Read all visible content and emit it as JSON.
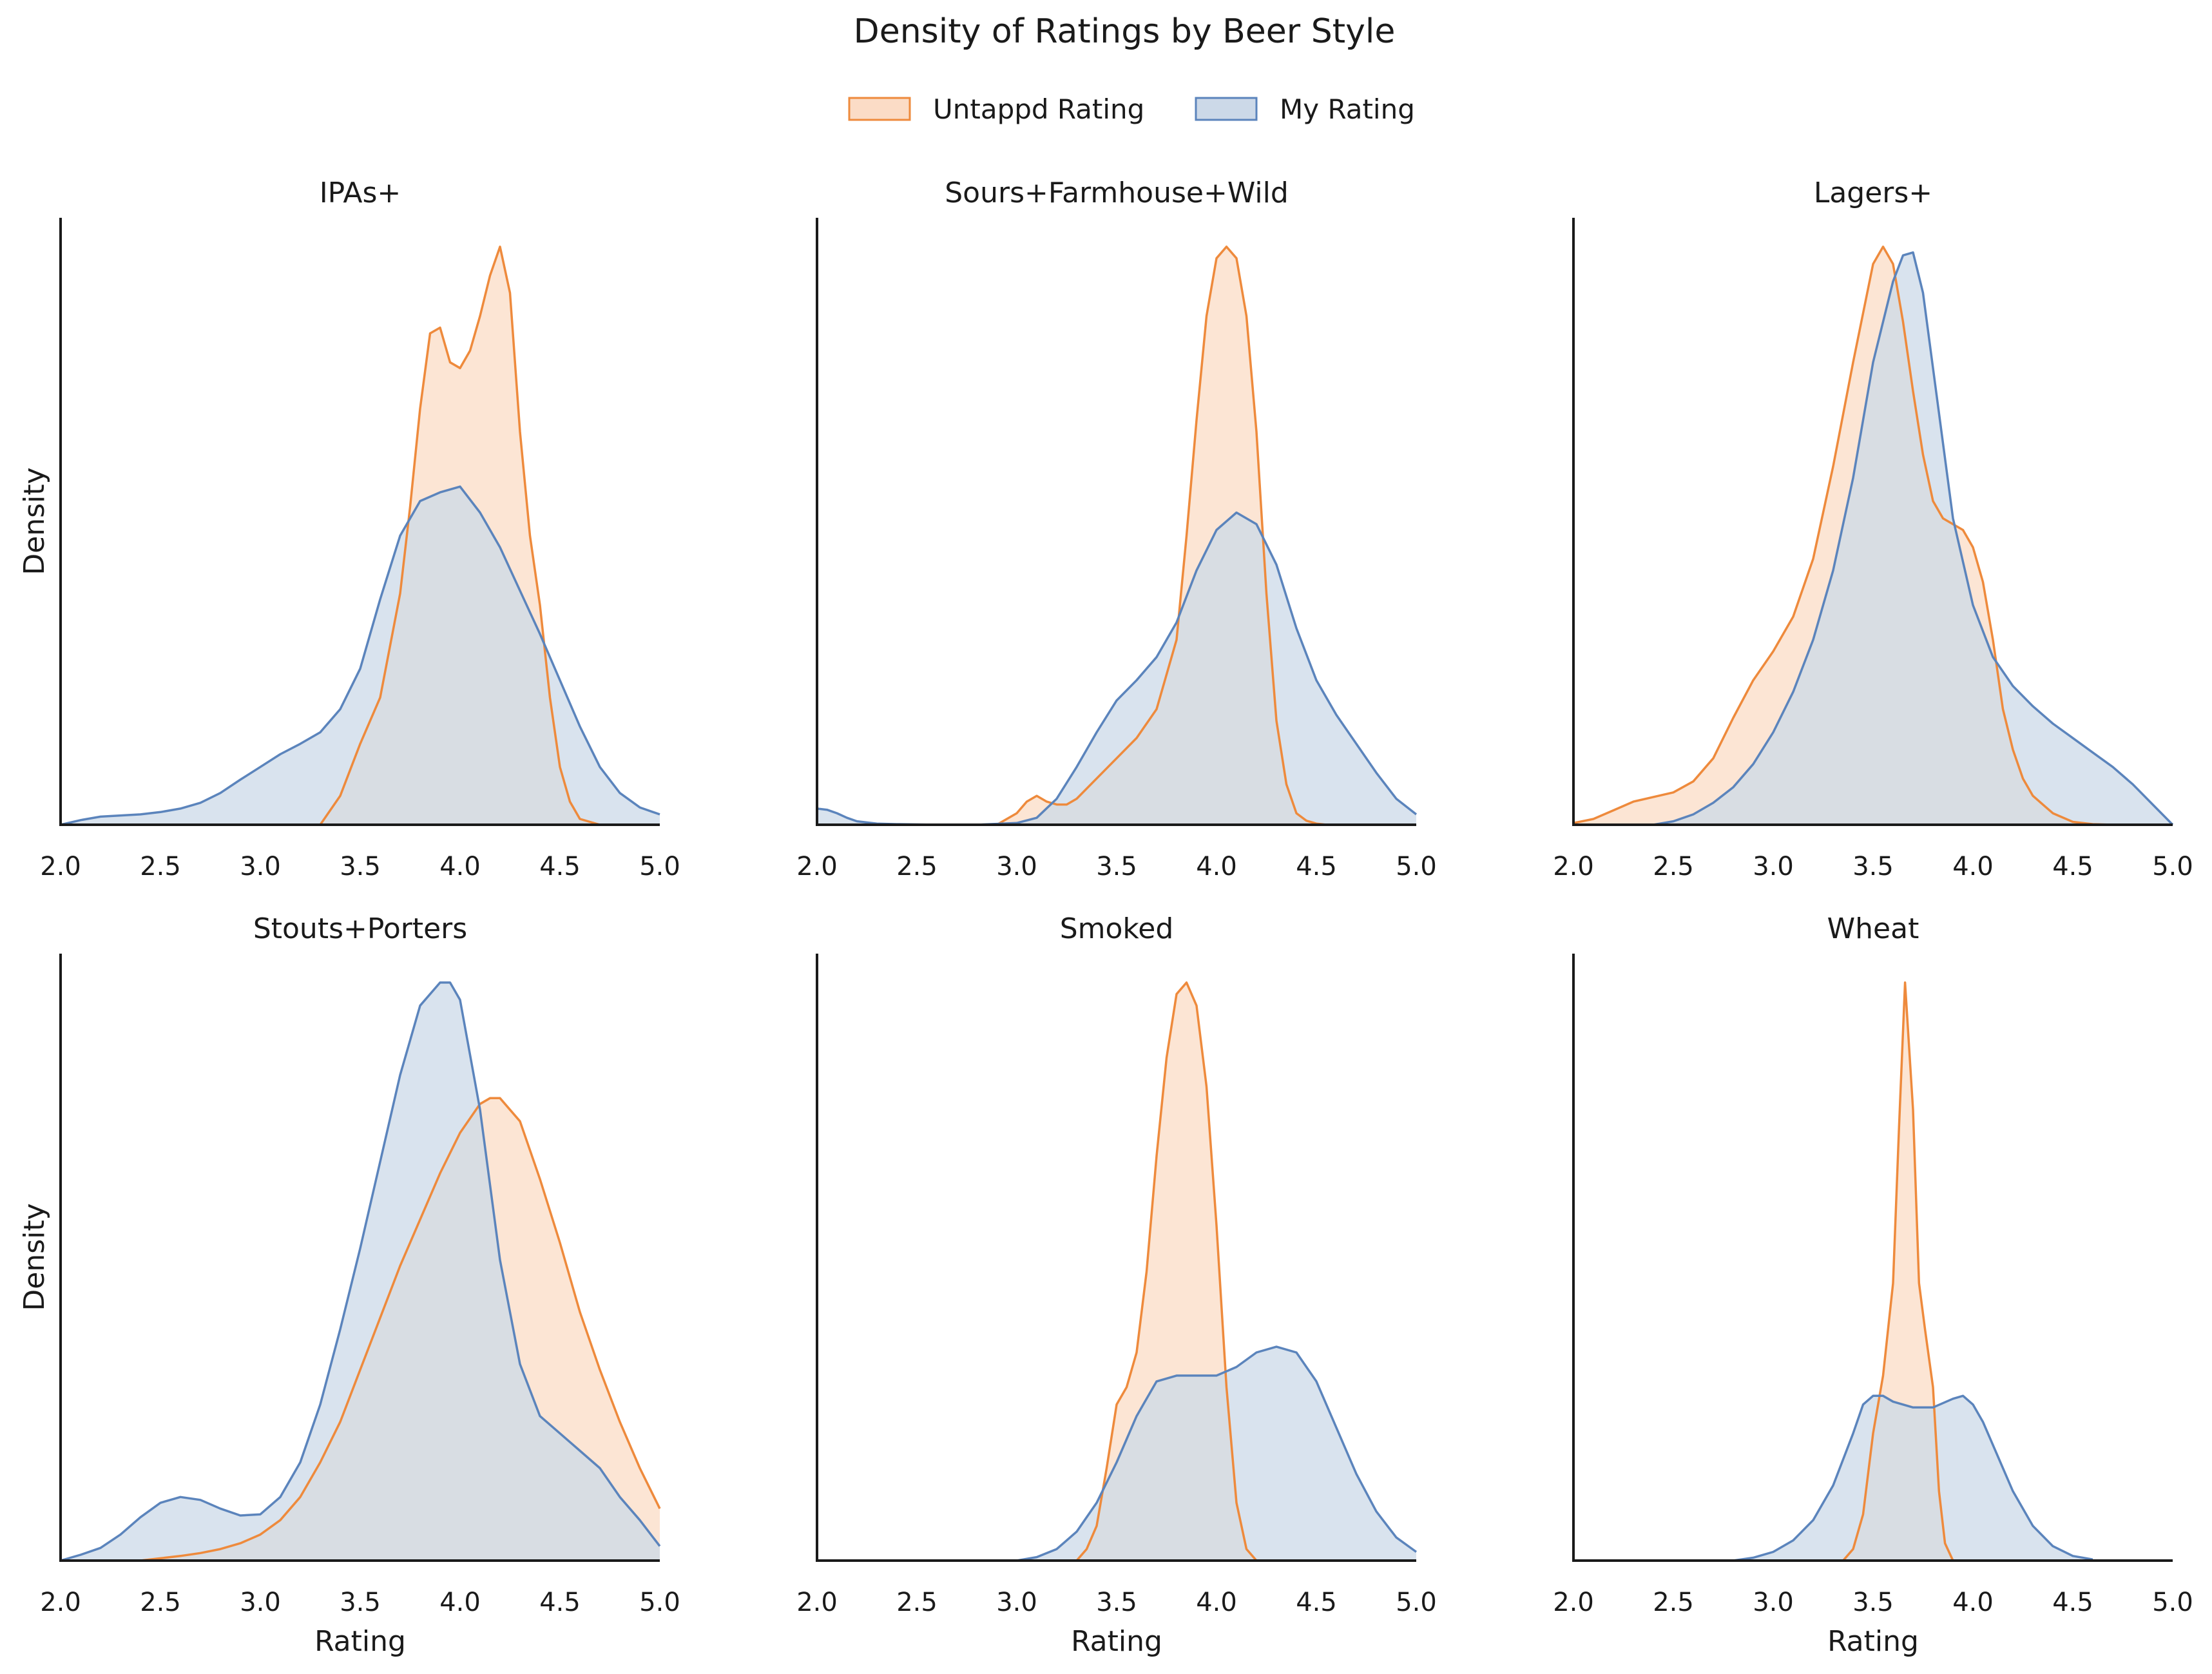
{
  "title": "Density of Ratings by Beer Style",
  "legend": [
    {
      "label": "Untappd Rating",
      "stroke": "#ee8a3c",
      "fill": "#fbdcc6"
    },
    {
      "label": "My Rating",
      "stroke": "#5b84bc",
      "fill": "#ccd9e8"
    }
  ],
  "colors": {
    "untappd_stroke": "#ee8a3c",
    "untappd_fill": "#fbdcc6",
    "my_stroke": "#5b84bc",
    "my_fill": "#ccd9e8",
    "axis": "#1a1a1a"
  },
  "chart_data": [
    {
      "type": "area",
      "title": "IPAs+",
      "xlabel": "",
      "ylabel": "Density",
      "xlim": [
        2.0,
        5.0
      ],
      "ylim": [
        0,
        1.05
      ],
      "xticks": [
        "2.0",
        "2.5",
        "3.0",
        "3.5",
        "4.0",
        "4.5",
        "5.0"
      ],
      "series": [
        {
          "name": "Untappd Rating",
          "x": [
            3.3,
            3.4,
            3.5,
            3.6,
            3.7,
            3.75,
            3.8,
            3.85,
            3.9,
            3.95,
            4.0,
            4.05,
            4.1,
            4.15,
            4.2,
            4.25,
            4.3,
            4.35,
            4.4,
            4.45,
            4.5,
            4.55,
            4.6,
            4.7
          ],
          "y": [
            0.0,
            0.05,
            0.14,
            0.22,
            0.4,
            0.55,
            0.72,
            0.85,
            0.86,
            0.8,
            0.79,
            0.82,
            0.88,
            0.95,
            1.0,
            0.92,
            0.68,
            0.5,
            0.38,
            0.22,
            0.1,
            0.04,
            0.01,
            0.0
          ]
        },
        {
          "name": "My Rating",
          "x": [
            2.0,
            2.1,
            2.2,
            2.3,
            2.4,
            2.5,
            2.6,
            2.7,
            2.8,
            2.9,
            3.0,
            3.1,
            3.2,
            3.3,
            3.4,
            3.5,
            3.6,
            3.7,
            3.8,
            3.9,
            4.0,
            4.1,
            4.2,
            4.3,
            4.4,
            4.5,
            4.6,
            4.7,
            4.8,
            4.9,
            5.0
          ],
          "y": [
            0.0,
            0.008,
            0.014,
            0.016,
            0.018,
            0.022,
            0.028,
            0.038,
            0.055,
            0.078,
            0.1,
            0.122,
            0.14,
            0.16,
            0.2,
            0.27,
            0.39,
            0.5,
            0.56,
            0.575,
            0.585,
            0.54,
            0.48,
            0.405,
            0.33,
            0.25,
            0.17,
            0.1,
            0.055,
            0.03,
            0.018
          ]
        }
      ]
    },
    {
      "type": "area",
      "title": "Sours+Farmhouse+Wild",
      "xlabel": "",
      "ylabel": "",
      "xlim": [
        2.0,
        5.0
      ],
      "ylim": [
        0,
        1.05
      ],
      "xticks": [
        "2.0",
        "2.5",
        "3.0",
        "3.5",
        "4.0",
        "4.5",
        "5.0"
      ],
      "series": [
        {
          "name": "Untappd Rating",
          "x": [
            2.9,
            3.0,
            3.05,
            3.1,
            3.15,
            3.2,
            3.25,
            3.3,
            3.4,
            3.5,
            3.6,
            3.7,
            3.8,
            3.85,
            3.9,
            3.95,
            4.0,
            4.05,
            4.1,
            4.15,
            4.2,
            4.25,
            4.3,
            4.35,
            4.4,
            4.45,
            4.5,
            4.55
          ],
          "y": [
            0.0,
            0.02,
            0.04,
            0.05,
            0.04,
            0.035,
            0.035,
            0.045,
            0.08,
            0.115,
            0.15,
            0.2,
            0.32,
            0.5,
            0.7,
            0.88,
            0.98,
            1.0,
            0.98,
            0.88,
            0.68,
            0.4,
            0.18,
            0.07,
            0.02,
            0.007,
            0.002,
            0.0
          ]
        },
        {
          "name": "My Rating",
          "x": [
            2.0,
            2.05,
            2.1,
            2.15,
            2.2,
            2.3,
            2.4,
            2.6,
            2.8,
            3.0,
            3.1,
            3.2,
            3.3,
            3.4,
            3.5,
            3.6,
            3.7,
            3.8,
            3.9,
            4.0,
            4.1,
            4.2,
            4.3,
            4.4,
            4.5,
            4.6,
            4.7,
            4.8,
            4.9,
            5.0
          ],
          "y": [
            0.028,
            0.026,
            0.02,
            0.012,
            0.006,
            0.002,
            0.001,
            0.0,
            0.0,
            0.003,
            0.012,
            0.045,
            0.1,
            0.16,
            0.215,
            0.25,
            0.29,
            0.35,
            0.44,
            0.51,
            0.54,
            0.52,
            0.45,
            0.34,
            0.25,
            0.19,
            0.14,
            0.09,
            0.045,
            0.018
          ]
        }
      ]
    },
    {
      "type": "area",
      "title": "Lagers+",
      "xlabel": "",
      "ylabel": "",
      "xlim": [
        2.0,
        5.0
      ],
      "ylim": [
        0,
        1.05
      ],
      "xticks": [
        "2.0",
        "2.5",
        "3.0",
        "3.5",
        "4.0",
        "4.5",
        "5.0"
      ],
      "series": [
        {
          "name": "Untappd Rating",
          "x": [
            2.0,
            2.1,
            2.2,
            2.3,
            2.4,
            2.5,
            2.6,
            2.7,
            2.8,
            2.9,
            3.0,
            3.1,
            3.2,
            3.3,
            3.4,
            3.5,
            3.55,
            3.6,
            3.65,
            3.7,
            3.75,
            3.8,
            3.85,
            3.9,
            3.95,
            4.0,
            4.05,
            4.1,
            4.15,
            4.2,
            4.25,
            4.3,
            4.4,
            4.5,
            4.6,
            4.7
          ],
          "y": [
            0.003,
            0.01,
            0.025,
            0.04,
            0.048,
            0.056,
            0.075,
            0.115,
            0.185,
            0.25,
            0.3,
            0.36,
            0.46,
            0.62,
            0.8,
            0.97,
            1.0,
            0.97,
            0.87,
            0.75,
            0.64,
            0.56,
            0.53,
            0.52,
            0.51,
            0.48,
            0.42,
            0.32,
            0.2,
            0.13,
            0.08,
            0.05,
            0.02,
            0.005,
            0.001,
            0.0
          ]
        },
        {
          "name": "My Rating",
          "x": [
            2.4,
            2.5,
            2.6,
            2.7,
            2.8,
            2.9,
            3.0,
            3.1,
            3.2,
            3.3,
            3.4,
            3.5,
            3.6,
            3.65,
            3.7,
            3.75,
            3.8,
            3.85,
            3.9,
            4.0,
            4.1,
            4.2,
            4.3,
            4.4,
            4.5,
            4.6,
            4.7,
            4.8,
            4.9,
            5.0
          ],
          "y": [
            0.0,
            0.006,
            0.018,
            0.038,
            0.065,
            0.105,
            0.16,
            0.23,
            0.32,
            0.44,
            0.6,
            0.8,
            0.94,
            0.985,
            0.99,
            0.92,
            0.79,
            0.66,
            0.53,
            0.38,
            0.29,
            0.24,
            0.205,
            0.175,
            0.15,
            0.125,
            0.1,
            0.07,
            0.035,
            0.0
          ]
        }
      ]
    },
    {
      "type": "area",
      "title": "Stouts+Porters",
      "xlabel": "Rating",
      "ylabel": "Density",
      "xlim": [
        2.0,
        5.0
      ],
      "ylim": [
        0,
        1.05
      ],
      "xticks": [
        "2.0",
        "2.5",
        "3.0",
        "3.5",
        "4.0",
        "4.5",
        "5.0"
      ],
      "series": [
        {
          "name": "Untappd Rating",
          "x": [
            2.4,
            2.5,
            2.6,
            2.7,
            2.8,
            2.9,
            3.0,
            3.1,
            3.2,
            3.3,
            3.4,
            3.5,
            3.6,
            3.7,
            3.8,
            3.9,
            4.0,
            4.1,
            4.15,
            4.2,
            4.3,
            4.4,
            4.5,
            4.6,
            4.7,
            4.8,
            4.9,
            5.0
          ],
          "y": [
            0.0,
            0.004,
            0.008,
            0.013,
            0.02,
            0.03,
            0.045,
            0.07,
            0.11,
            0.17,
            0.24,
            0.33,
            0.42,
            0.51,
            0.59,
            0.67,
            0.74,
            0.79,
            0.8,
            0.8,
            0.76,
            0.66,
            0.55,
            0.43,
            0.33,
            0.24,
            0.16,
            0.09
          ]
        },
        {
          "name": "My Rating",
          "x": [
            2.0,
            2.1,
            2.2,
            2.3,
            2.4,
            2.5,
            2.6,
            2.7,
            2.8,
            2.9,
            3.0,
            3.1,
            3.2,
            3.3,
            3.4,
            3.5,
            3.6,
            3.7,
            3.8,
            3.9,
            3.95,
            4.0,
            4.1,
            4.2,
            4.3,
            4.4,
            4.5,
            4.6,
            4.7,
            4.8,
            4.9,
            5.0
          ],
          "y": [
            0.0,
            0.01,
            0.022,
            0.045,
            0.075,
            0.1,
            0.11,
            0.105,
            0.09,
            0.078,
            0.08,
            0.11,
            0.17,
            0.27,
            0.4,
            0.54,
            0.69,
            0.84,
            0.96,
            1.0,
            1.0,
            0.97,
            0.78,
            0.52,
            0.34,
            0.25,
            0.22,
            0.19,
            0.16,
            0.11,
            0.07,
            0.025
          ]
        }
      ]
    },
    {
      "type": "area",
      "title": "Smoked",
      "xlabel": "Rating",
      "ylabel": "",
      "xlim": [
        2.0,
        5.0
      ],
      "ylim": [
        0,
        1.05
      ],
      "xticks": [
        "2.0",
        "2.5",
        "3.0",
        "3.5",
        "4.0",
        "4.5",
        "5.0"
      ],
      "series": [
        {
          "name": "Untappd Rating",
          "x": [
            3.3,
            3.35,
            3.4,
            3.45,
            3.5,
            3.55,
            3.6,
            3.65,
            3.7,
            3.75,
            3.8,
            3.85,
            3.9,
            3.95,
            4.0,
            4.05,
            4.1,
            4.15,
            4.2
          ],
          "y": [
            0.0,
            0.02,
            0.06,
            0.16,
            0.27,
            0.3,
            0.36,
            0.5,
            0.7,
            0.87,
            0.98,
            1.0,
            0.96,
            0.82,
            0.58,
            0.3,
            0.1,
            0.02,
            0.0
          ]
        },
        {
          "name": "My Rating",
          "x": [
            3.0,
            3.1,
            3.2,
            3.3,
            3.4,
            3.5,
            3.6,
            3.7,
            3.8,
            3.9,
            4.0,
            4.1,
            4.2,
            4.3,
            4.4,
            4.5,
            4.6,
            4.7,
            4.8,
            4.9,
            5.0
          ],
          "y": [
            0.0,
            0.006,
            0.02,
            0.05,
            0.1,
            0.17,
            0.25,
            0.31,
            0.32,
            0.32,
            0.32,
            0.335,
            0.36,
            0.37,
            0.36,
            0.31,
            0.23,
            0.15,
            0.085,
            0.04,
            0.015
          ]
        }
      ]
    },
    {
      "type": "area",
      "title": "Wheat",
      "xlabel": "Rating",
      "ylabel": "",
      "xlim": [
        2.0,
        5.0
      ],
      "ylim": [
        0,
        1.05
      ],
      "xticks": [
        "2.0",
        "2.5",
        "3.0",
        "3.5",
        "4.0",
        "4.5",
        "5.0"
      ],
      "series": [
        {
          "name": "Untappd Rating",
          "x": [
            3.35,
            3.4,
            3.45,
            3.5,
            3.55,
            3.6,
            3.63,
            3.66,
            3.7,
            3.73,
            3.76,
            3.8,
            3.83,
            3.86,
            3.9
          ],
          "y": [
            0.0,
            0.02,
            0.08,
            0.22,
            0.32,
            0.48,
            0.75,
            1.0,
            0.78,
            0.48,
            0.4,
            0.3,
            0.12,
            0.03,
            0.0
          ]
        },
        {
          "name": "My Rating",
          "x": [
            2.8,
            2.9,
            3.0,
            3.1,
            3.2,
            3.3,
            3.4,
            3.45,
            3.5,
            3.55,
            3.6,
            3.7,
            3.8,
            3.9,
            3.95,
            4.0,
            4.05,
            4.1,
            4.2,
            4.3,
            4.4,
            4.5,
            4.6
          ],
          "y": [
            0.0,
            0.005,
            0.015,
            0.035,
            0.07,
            0.13,
            0.22,
            0.27,
            0.285,
            0.285,
            0.275,
            0.265,
            0.265,
            0.28,
            0.285,
            0.27,
            0.24,
            0.2,
            0.12,
            0.06,
            0.025,
            0.008,
            0.002
          ]
        }
      ]
    }
  ]
}
